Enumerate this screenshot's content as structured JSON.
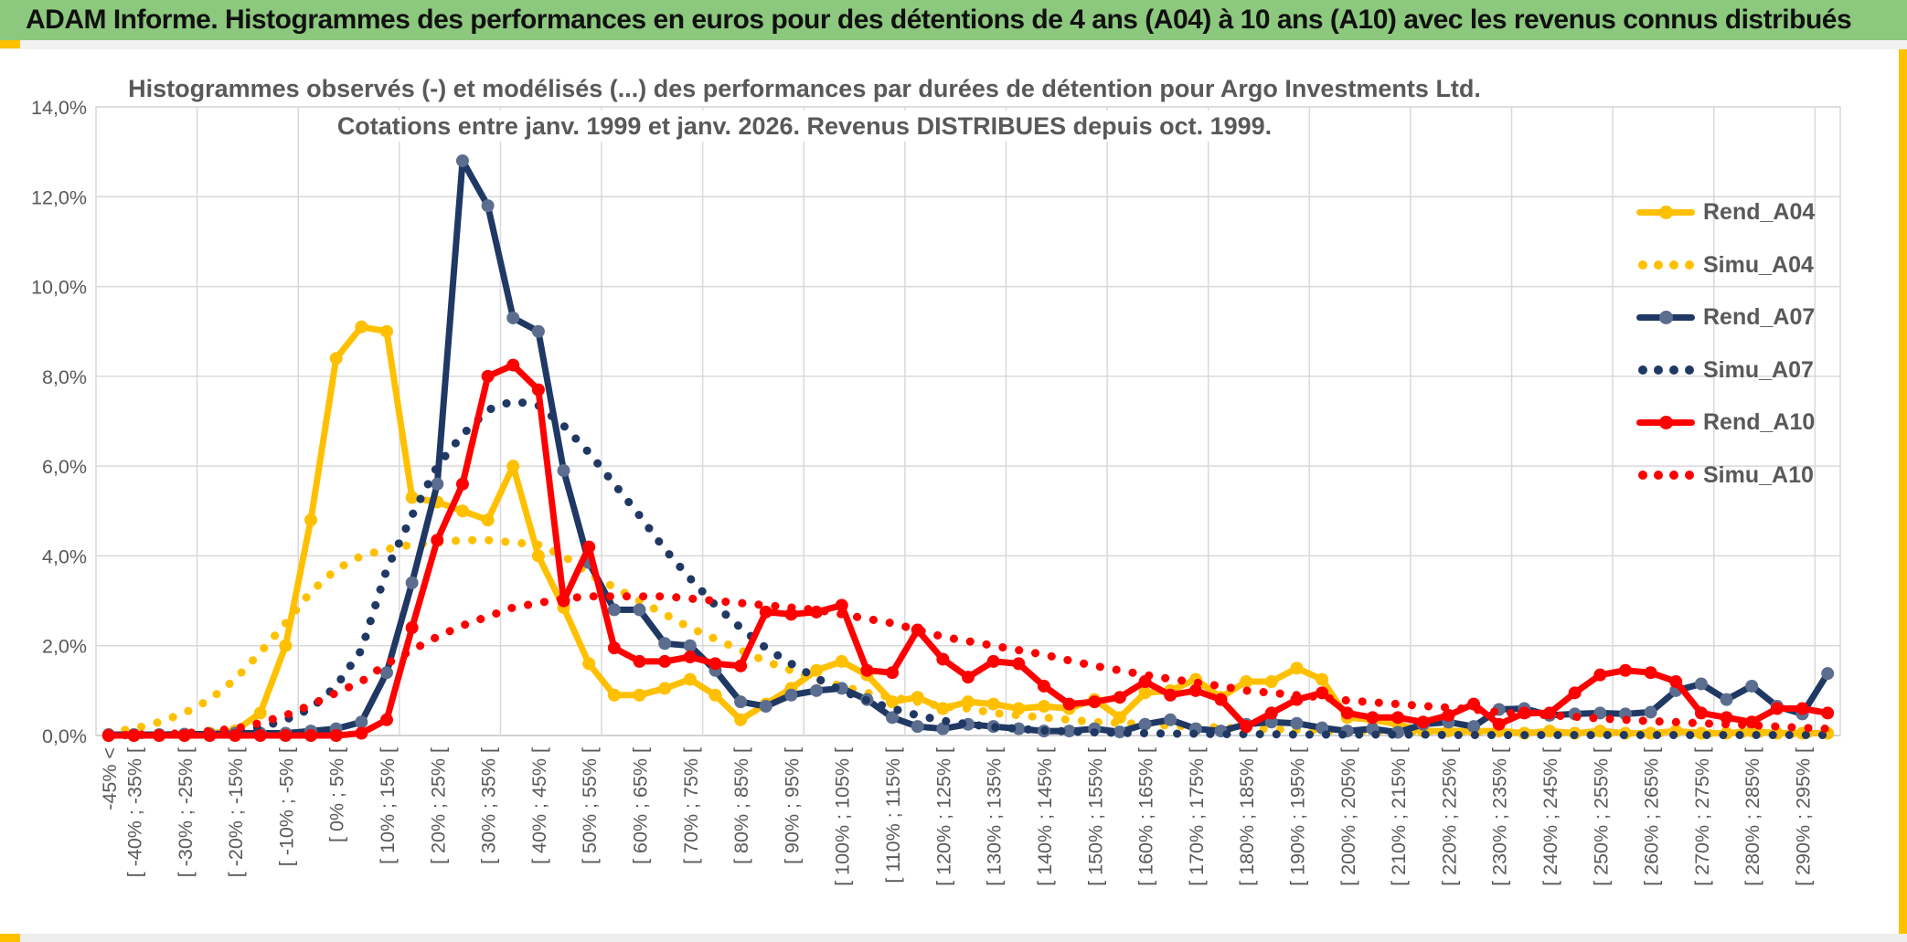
{
  "window": {
    "header_title": "ADAM Informe. Histogrammes des performances en euros pour des détentions de 4 ans (A04) à 10 ans (A10) avec les revenus connus distribués"
  },
  "chart": {
    "title_line1": "Histogrammes observés (-) et modélisés (...) des performances par durées de détention pour Argo Investments Ltd.",
    "title_line2": "Cotations entre janv. 1999 et janv. 2026. Revenus DISTRIBUES depuis oct. 1999."
  },
  "colors": {
    "header_green": "#8CC87D",
    "accent_gold": "#FFC000",
    "gold": "#FFC000",
    "navy": "#1F3864",
    "navy_marker": "#5B6E8F",
    "red": "#FF0000",
    "grid": "#D9D9D9",
    "axis_line": "#BFBFBF",
    "text_gray": "#595959"
  },
  "legend": [
    {
      "label": "Rend_A04",
      "color": "#FFC000",
      "marker_color": "#FFC000",
      "style": "solid"
    },
    {
      "label": "Simu_A04",
      "color": "#FFC000",
      "marker_color": "#FFC000",
      "style": "dotted"
    },
    {
      "label": "Rend_A07",
      "color": "#1F3864",
      "marker_color": "#5B6E8F",
      "style": "solid"
    },
    {
      "label": "Simu_A07",
      "color": "#1F3864",
      "marker_color": "#1F3864",
      "style": "dotted"
    },
    {
      "label": "Rend_A10",
      "color": "#FF0000",
      "marker_color": "#FF0000",
      "style": "solid"
    },
    {
      "label": "Simu_A10",
      "color": "#FF0000",
      "marker_color": "#FF0000",
      "style": "dotted"
    }
  ],
  "chart_data": {
    "type": "line",
    "title": "Histogrammes observés (-) et modélisés (...) des performances par durées de détention pour Argo Investments Ltd. Cotations entre janv. 1999 et janv. 2026. Revenus DISTRIBUES depuis oct. 1999.",
    "xlabel": "",
    "ylabel": "",
    "grid": true,
    "legend_position": "right",
    "y_axis": {
      "min": 0,
      "max": 14,
      "step": 2,
      "labels": [
        "0,0%",
        "2,0%",
        "4,0%",
        "6,0%",
        "8,0%",
        "10,0%",
        "12,0%",
        "14,0%"
      ]
    },
    "bins": [
      "-45% <",
      "[ -40% ; -35% [",
      "",
      "[ -30% ; -25% [",
      "",
      "[ -20% ; -15% [",
      "",
      "[ -10% ; -5% [",
      "",
      "[ 0% ; 5% [",
      "",
      "[ 10% ; 15% [",
      "",
      "[ 20% ; 25% [",
      "",
      "[ 30% ; 35% [",
      "",
      "[ 40% ; 45% [",
      "",
      "[ 50% ; 55% [",
      "",
      "[ 60% ; 65% [",
      "",
      "[ 70% ; 75% [",
      "",
      "[ 80% ; 85% [",
      "",
      "[ 90% ; 95% [",
      "",
      "[ 100% ; 105% [",
      "",
      "[ 110% ; 115% [",
      "",
      "[ 120% ; 125% [",
      "",
      "[ 130% ; 135% [",
      "",
      "[ 140% ; 145% [",
      "",
      "[ 150% ; 155% [",
      "",
      "[ 160% ; 165% [",
      "",
      "[ 170% ; 175% [",
      "",
      "[ 180% ; 185% [",
      "",
      "[ 190% ; 195% [",
      "",
      "[ 200% ; 205% [",
      "",
      "[ 210% ; 215% [",
      "",
      "[ 220% ; 225% [",
      "",
      "[ 230% ; 235% [",
      "",
      "[ 240% ; 245% [",
      "",
      "[ 250% ; 255% [",
      "",
      "[ 260% ; 265% [",
      "",
      "[ 270% ; 275% [",
      "",
      "[ 280% ; 285% [",
      "",
      "[ 290% ; 295% [",
      ""
    ],
    "unit": "percent",
    "series": [
      {
        "name": "Rend_A04",
        "style": "solid",
        "color": "#FFC000",
        "marker_color": "#FFC000",
        "values": [
          0,
          0,
          0,
          0,
          0.05,
          0.1,
          0.5,
          2,
          4.8,
          8.4,
          9.1,
          9,
          5.3,
          5.2,
          5,
          4.8,
          6,
          4,
          2.85,
          1.6,
          0.9,
          0.9,
          1.05,
          1.25,
          0.9,
          0.35,
          0.7,
          1.05,
          1.45,
          1.65,
          1.35,
          0.75,
          0.85,
          0.6,
          0.75,
          0.7,
          0.6,
          0.65,
          0.6,
          0.8,
          0.4,
          0.95,
          1,
          1.25,
          0.85,
          1.2,
          1.2,
          1.5,
          1.25,
          0.4,
          0.35,
          0.25,
          0.1,
          0.1,
          0.1,
          0.1,
          0.05,
          0.1,
          0.05,
          0.1,
          0.05,
          0.05,
          0.1,
          0.05,
          0.05,
          0.1,
          0.05,
          0.05,
          0.05
        ]
      },
      {
        "name": "Simu_A04",
        "style": "dotted",
        "color": "#FFC000",
        "marker_color": "#FFC000",
        "values": [
          0.08,
          0.15,
          0.3,
          0.5,
          0.8,
          1.25,
          1.85,
          2.5,
          3.2,
          3.7,
          4,
          4.15,
          4.25,
          4.3,
          4.35,
          4.35,
          4.3,
          4.25,
          4,
          3.6,
          3.3,
          3,
          2.7,
          2.4,
          2.15,
          1.9,
          1.65,
          1.45,
          1.25,
          1.1,
          0.95,
          0.85,
          0.75,
          0.65,
          0.6,
          0.5,
          0.45,
          0.4,
          0.35,
          0.3,
          0.28,
          0.25,
          0.22,
          0.2,
          0.18,
          0.15,
          0.14,
          0.13,
          0.11,
          0.1,
          0.1,
          0.09,
          0.08,
          0.08,
          0.07,
          0.07,
          0.06,
          0.06,
          0.06,
          0.05,
          0.05,
          0.05,
          0.05,
          0.05,
          0.04,
          0.04,
          0.04,
          0.04,
          0.04
        ]
      },
      {
        "name": "Rend_A07",
        "style": "solid",
        "color": "#1F3864",
        "marker_color": "#5B6E8F",
        "values": [
          0.02,
          0.02,
          0.02,
          0.03,
          0.03,
          0.05,
          0.05,
          0.05,
          0.1,
          0.15,
          0.3,
          1.4,
          3.4,
          5.6,
          12.8,
          11.8,
          9.3,
          9,
          5.9,
          3.85,
          2.8,
          2.8,
          2.05,
          2,
          1.45,
          0.75,
          0.65,
          0.9,
          1,
          1.05,
          0.8,
          0.4,
          0.2,
          0.15,
          0.25,
          0.2,
          0.15,
          0.1,
          0.1,
          0.15,
          0.08,
          0.25,
          0.35,
          0.15,
          0.1,
          0.25,
          0.3,
          0.27,
          0.17,
          0.1,
          0.15,
          0.07,
          0.25,
          0.3,
          0.2,
          0.58,
          0.6,
          0.45,
          0.48,
          0.5,
          0.48,
          0.52,
          1,
          1.15,
          0.8,
          1.1,
          0.65,
          0.48,
          1.38
        ]
      },
      {
        "name": "Simu_A07",
        "style": "dotted",
        "color": "#1F3864",
        "marker_color": "#1F3864",
        "values": [
          0,
          0.01,
          0.02,
          0.03,
          0.05,
          0.1,
          0.18,
          0.35,
          0.6,
          1.1,
          1.9,
          3.7,
          4.9,
          6,
          6.7,
          7.25,
          7.45,
          7.35,
          6.9,
          6.3,
          5.6,
          4.9,
          4.15,
          3.5,
          2.9,
          2.4,
          1.95,
          1.6,
          1.28,
          1,
          0.78,
          0.6,
          0.45,
          0.33,
          0.25,
          0.19,
          0.15,
          0.11,
          0.09,
          0.07,
          0.06,
          0.05,
          0.04,
          0.04,
          0.03,
          0.03,
          0.03,
          0.02,
          0.02,
          0.02,
          0.02,
          0.02,
          0.02,
          0.01,
          0.01,
          0.01,
          0.01,
          0.01,
          0.01,
          0.01,
          0.01,
          0.01,
          0.01,
          0.01,
          0.01,
          0.01,
          0.01,
          0.01,
          0.01
        ]
      },
      {
        "name": "Rend_A10",
        "style": "solid",
        "color": "#FF0000",
        "marker_color": "#FF0000",
        "values": [
          0,
          0,
          0,
          0,
          0,
          0,
          0,
          0,
          0,
          0,
          0.05,
          0.35,
          2.4,
          4.35,
          5.6,
          8,
          8.25,
          7.7,
          3,
          4.2,
          1.95,
          1.65,
          1.65,
          1.75,
          1.6,
          1.55,
          2.75,
          2.7,
          2.75,
          2.9,
          1.45,
          1.4,
          2.35,
          1.7,
          1.3,
          1.65,
          1.6,
          1.1,
          0.7,
          0.75,
          0.85,
          1.2,
          0.9,
          1,
          0.8,
          0.2,
          0.5,
          0.8,
          0.95,
          0.5,
          0.4,
          0.4,
          0.3,
          0.45,
          0.7,
          0.25,
          0.5,
          0.5,
          0.95,
          1.35,
          1.45,
          1.4,
          1.2,
          0.5,
          0.4,
          0.3,
          0.6,
          0.6,
          0.5
        ]
      },
      {
        "name": "Simu_A10",
        "style": "dotted",
        "color": "#FF0000",
        "marker_color": "#FF0000",
        "values": [
          0,
          0.02,
          0.03,
          0.05,
          0.1,
          0.15,
          0.28,
          0.45,
          0.68,
          0.95,
          1.2,
          1.6,
          1.9,
          2.2,
          2.45,
          2.65,
          2.85,
          2.95,
          3.05,
          3.1,
          3.1,
          3.1,
          3.1,
          3.05,
          3,
          2.95,
          2.9,
          2.85,
          2.8,
          2.7,
          2.6,
          2.5,
          2.35,
          2.2,
          2.1,
          2,
          1.9,
          1.8,
          1.67,
          1.55,
          1.45,
          1.35,
          1.26,
          1.18,
          1.1,
          1,
          0.95,
          0.9,
          0.85,
          0.78,
          0.74,
          0.7,
          0.66,
          0.62,
          0.58,
          0.52,
          0.48,
          0.45,
          0.42,
          0.38,
          0.35,
          0.32,
          0.3,
          0.27,
          0.25,
          0.23,
          0.2,
          0.17,
          0.15
        ]
      }
    ]
  }
}
